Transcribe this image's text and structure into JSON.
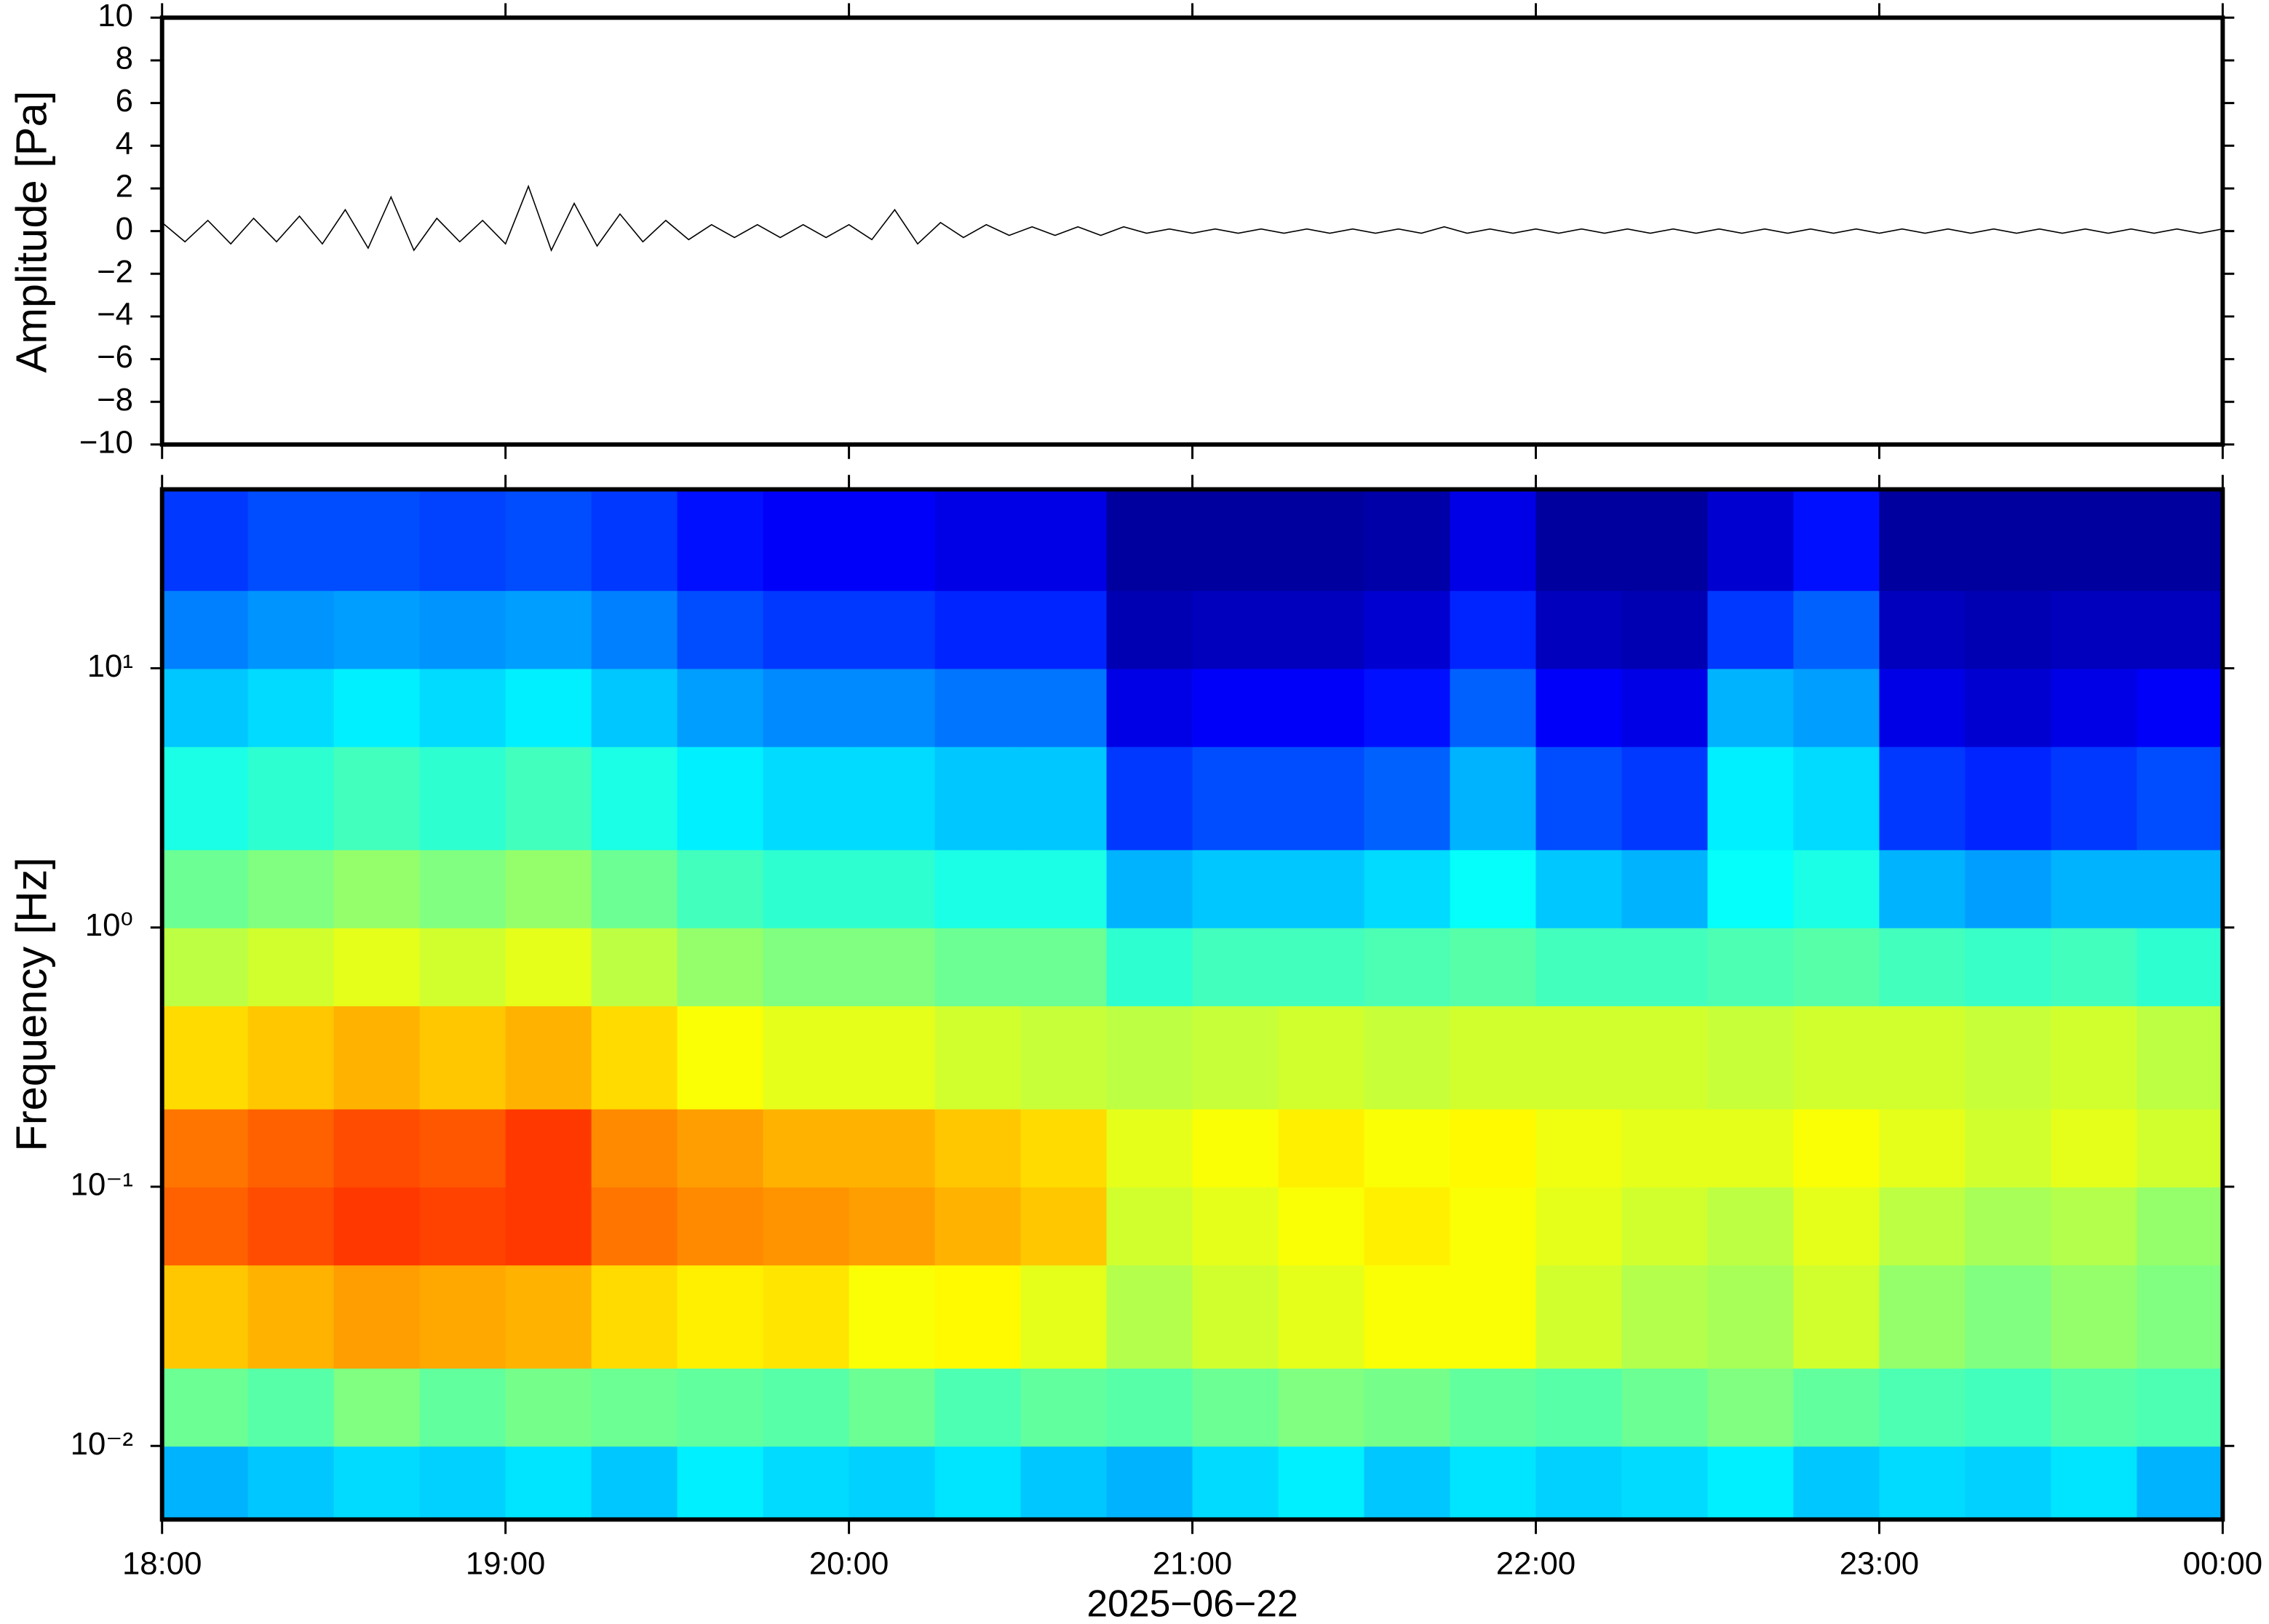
{
  "chart_data": [
    {
      "type": "line",
      "ylabel": "Amplitude [Pa]",
      "xlim": [
        "18:00",
        "00:00"
      ],
      "ylim": [
        -10,
        10
      ],
      "yticks": [
        {
          "value": -10,
          "label": "−10"
        },
        {
          "value": -8,
          "label": "−8"
        },
        {
          "value": -6,
          "label": "−6"
        },
        {
          "value": -4,
          "label": "−4"
        },
        {
          "value": -2,
          "label": "−2"
        },
        0,
        2,
        4,
        6,
        8,
        10
      ],
      "color": "#000000",
      "x": [
        "18:00",
        "18:04",
        "18:08",
        "18:12",
        "18:16",
        "18:20",
        "18:24",
        "18:28",
        "18:32",
        "18:36",
        "18:40",
        "18:44",
        "18:48",
        "18:52",
        "18:56",
        "19:00",
        "19:04",
        "19:08",
        "19:12",
        "19:16",
        "19:20",
        "19:24",
        "19:28",
        "19:32",
        "19:36",
        "19:40",
        "19:44",
        "19:48",
        "19:52",
        "19:56",
        "20:00",
        "20:04",
        "20:08",
        "20:12",
        "20:16",
        "20:20",
        "20:24",
        "20:28",
        "20:32",
        "20:36",
        "20:40",
        "20:44",
        "20:48",
        "20:52",
        "20:56",
        "21:00",
        "21:04",
        "21:08",
        "21:12",
        "21:16",
        "21:20",
        "21:24",
        "21:28",
        "21:32",
        "21:36",
        "21:40",
        "21:44",
        "21:48",
        "21:52",
        "21:56",
        "22:00",
        "22:04",
        "22:08",
        "22:12",
        "22:16",
        "22:20",
        "22:24",
        "22:28",
        "22:32",
        "22:36",
        "22:40",
        "22:44",
        "22:48",
        "22:52",
        "22:56",
        "23:00",
        "23:04",
        "23:08",
        "23:12",
        "23:16",
        "23:20",
        "23:24",
        "23:28",
        "23:32",
        "23:36",
        "23:40",
        "23:44",
        "23:48",
        "23:52",
        "23:56",
        "00:00"
      ],
      "values": [
        0.4,
        -0.5,
        0.5,
        -0.6,
        0.6,
        -0.5,
        0.7,
        -0.6,
        1.0,
        -0.8,
        1.6,
        -0.9,
        0.6,
        -0.5,
        0.5,
        -0.6,
        2.1,
        -0.9,
        1.3,
        -0.7,
        0.8,
        -0.5,
        0.5,
        -0.4,
        0.3,
        -0.3,
        0.3,
        -0.3,
        0.3,
        -0.3,
        0.3,
        -0.4,
        1.0,
        -0.6,
        0.4,
        -0.3,
        0.3,
        -0.2,
        0.2,
        -0.2,
        0.2,
        -0.2,
        0.2,
        -0.1,
        0.1,
        -0.1,
        0.1,
        -0.1,
        0.1,
        -0.1,
        0.1,
        -0.1,
        0.1,
        -0.1,
        0.1,
        -0.1,
        0.2,
        -0.1,
        0.1,
        -0.1,
        0.1,
        -0.1,
        0.1,
        -0.1,
        0.1,
        -0.1,
        0.1,
        -0.1,
        0.1,
        -0.1,
        0.1,
        -0.1,
        0.1,
        -0.1,
        0.1,
        -0.1,
        0.1,
        -0.1,
        0.1,
        -0.1,
        0.1,
        -0.1,
        0.1,
        -0.1,
        0.1,
        -0.1,
        0.1,
        -0.1,
        0.1,
        -0.1,
        0.1
      ]
    },
    {
      "type": "heatmap",
      "ylabel": "Frequency [Hz]",
      "xlabel": "2025−06−22",
      "log_y": true,
      "colormap": "jet",
      "zlim": [
        0,
        100
      ],
      "xlim": [
        "18:00",
        "00:00"
      ],
      "xticks": [
        "18:00",
        "19:00",
        "20:00",
        "21:00",
        "22:00",
        "23:00",
        "00:00"
      ],
      "ylim": [
        0.0052,
        49
      ],
      "yticks": [
        {
          "value": 0.01,
          "label": "10⁻²"
        },
        {
          "value": 0.1,
          "label": "10⁻¹"
        },
        {
          "value": 1,
          "label": "10⁰"
        },
        {
          "value": 10,
          "label": "10¹"
        }
      ],
      "xbins": [
        "18:00",
        "18:15",
        "18:30",
        "18:45",
        "19:00",
        "19:15",
        "19:30",
        "19:45",
        "20:00",
        "20:15",
        "20:30",
        "20:45",
        "21:00",
        "21:15",
        "21:30",
        "21:45",
        "22:00",
        "22:15",
        "22:30",
        "22:45",
        "23:00",
        "23:15",
        "23:30",
        "23:45",
        "00:00"
      ],
      "ybins": [
        0.0052,
        0.01,
        0.02,
        0.05,
        0.1,
        0.2,
        0.5,
        1,
        2,
        5,
        10,
        20,
        49
      ],
      "values": [
        [
          30,
          32,
          34,
          33,
          35,
          32,
          36,
          34,
          33,
          35,
          32,
          30,
          34,
          36,
          32,
          35,
          33,
          34,
          36,
          32,
          34,
          33,
          35,
          30
        ],
        [
          48,
          46,
          50,
          47,
          49,
          48,
          47,
          46,
          48,
          45,
          47,
          46,
          48,
          50,
          49,
          47,
          46,
          48,
          50,
          47,
          45,
          44,
          46,
          45
        ],
        [
          68,
          70,
          72,
          71,
          70,
          66,
          64,
          65,
          62,
          63,
          60,
          55,
          58,
          60,
          62,
          62,
          58,
          55,
          54,
          58,
          52,
          50,
          52,
          50
        ],
        [
          78,
          80,
          82,
          81,
          82,
          76,
          74,
          73,
          72,
          70,
          68,
          58,
          60,
          62,
          64,
          62,
          60,
          58,
          56,
          60,
          56,
          54,
          55,
          52
        ],
        [
          76,
          78,
          80,
          79,
          82,
          74,
          72,
          70,
          70,
          68,
          66,
          60,
          62,
          64,
          62,
          63,
          61,
          60,
          60,
          62,
          60,
          58,
          60,
          58
        ],
        [
          66,
          68,
          70,
          68,
          70,
          66,
          62,
          60,
          60,
          58,
          57,
          56,
          57,
          58,
          57,
          58,
          58,
          58,
          57,
          58,
          58,
          57,
          58,
          56
        ],
        [
          56,
          58,
          60,
          58,
          60,
          56,
          52,
          50,
          50,
          48,
          48,
          42,
          44,
          44,
          45,
          46,
          44,
          44,
          45,
          46,
          44,
          43,
          44,
          42
        ],
        [
          48,
          50,
          52,
          50,
          52,
          48,
          44,
          42,
          42,
          40,
          40,
          30,
          32,
          32,
          34,
          38,
          32,
          30,
          38,
          40,
          30,
          28,
          30,
          30
        ],
        [
          40,
          42,
          44,
          42,
          44,
          40,
          36,
          34,
          34,
          32,
          32,
          18,
          20,
          20,
          22,
          30,
          20,
          18,
          36,
          34,
          18,
          16,
          18,
          20
        ],
        [
          32,
          34,
          36,
          34,
          36,
          32,
          28,
          26,
          26,
          24,
          24,
          10,
          12,
          12,
          14,
          22,
          12,
          10,
          30,
          28,
          10,
          8,
          10,
          12
        ],
        [
          25,
          27,
          28,
          27,
          28,
          25,
          20,
          18,
          18,
          16,
          16,
          5,
          6,
          6,
          8,
          16,
          6,
          5,
          18,
          22,
          6,
          5,
          6,
          6
        ],
        [
          18,
          20,
          20,
          19,
          20,
          18,
          14,
          12,
          12,
          10,
          10,
          3,
          3,
          3,
          4,
          10,
          3,
          3,
          8,
          14,
          3,
          3,
          3,
          3
        ]
      ]
    }
  ]
}
